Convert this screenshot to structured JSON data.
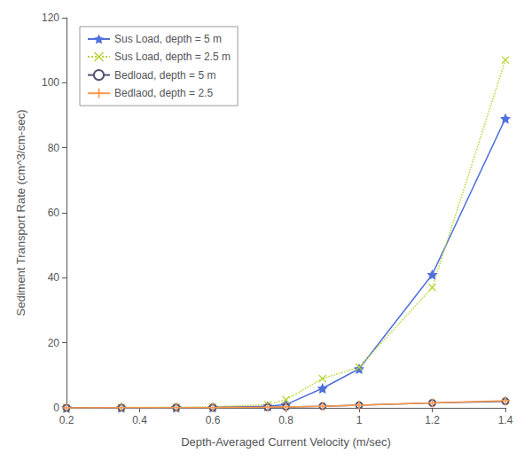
{
  "chart_data": {
    "type": "line",
    "xlabel": "Depth-Averaged Current Velocity (m/sec)",
    "ylabel": "Sediment Transport Rate (cm^3/cm-sec)",
    "x": [
      0.2,
      0.35,
      0.5,
      0.6,
      0.75,
      0.8,
      0.9,
      1.0,
      1.2,
      1.4
    ],
    "series": [
      {
        "name": "Sus Load, depth = 5 m",
        "marker": "star",
        "line_style": "solid",
        "values": [
          0.0,
          0.05,
          0.1,
          0.15,
          0.5,
          1.0,
          6.0,
          12.0,
          41.0,
          89.0
        ]
      },
      {
        "name": "Sus Load, depth = 2.5 m",
        "marker": "x",
        "line_style": "dotted",
        "values": [
          0.0,
          0.1,
          0.2,
          0.3,
          1.0,
          2.5,
          9.0,
          12.5,
          37.0,
          107.0
        ]
      },
      {
        "name": "Bedload, depth = 5 m",
        "marker": "circle",
        "line_style": "solid",
        "values": [
          0.0,
          0.05,
          0.1,
          0.1,
          0.2,
          0.3,
          0.5,
          0.8,
          1.5,
          2.0
        ]
      },
      {
        "name": "Bedlaod, depth = 2.5",
        "marker": "plus",
        "line_style": "solid",
        "values": [
          0.0,
          0.05,
          0.1,
          0.1,
          0.2,
          0.3,
          0.5,
          0.8,
          1.5,
          2.2
        ]
      }
    ],
    "xlim": [
      0.2,
      1.4
    ],
    "ylim": [
      0,
      120
    ],
    "xticks": [
      0.2,
      0.4,
      0.6,
      0.8,
      1.0,
      1.2,
      1.4
    ],
    "yticks": [
      0,
      20,
      40,
      60,
      80,
      100,
      120
    ],
    "grid": false,
    "legend": "upper left"
  }
}
